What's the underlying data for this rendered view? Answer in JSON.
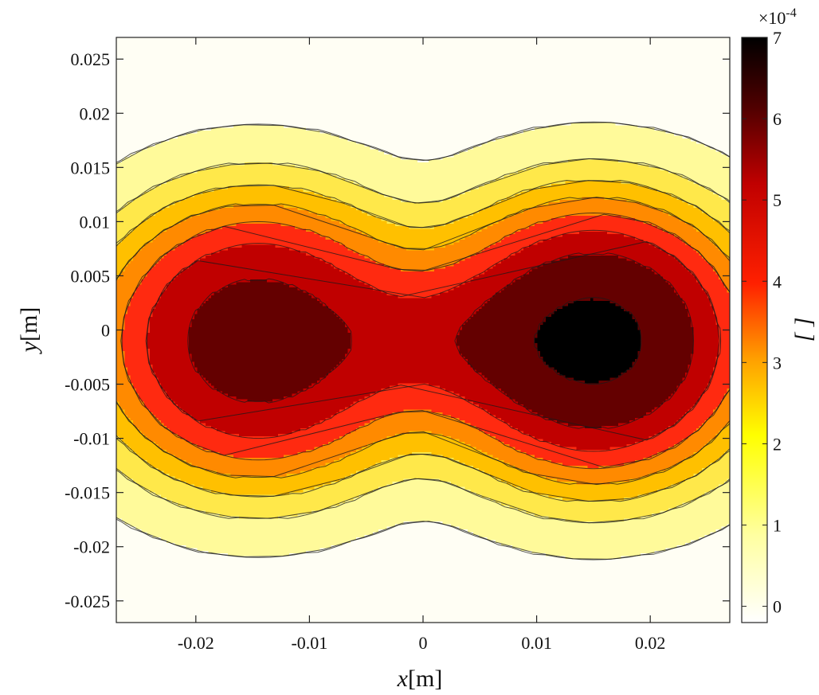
{
  "chart_data": {
    "type": "heatmap",
    "title": "",
    "xlabel_base": "x",
    "xlabel_unit": "[m]",
    "ylabel_base": "y",
    "ylabel_unit": "[m]",
    "colorbar_label": "[ ]",
    "colorbar_exponent_prefix": "×10",
    "colorbar_exponent": "-4",
    "xlim": [
      -0.027,
      0.027
    ],
    "ylim": [
      -0.027,
      0.027
    ],
    "clim": [
      -0.2,
      7
    ],
    "x_ticks": [
      -0.02,
      -0.01,
      0,
      0.01,
      0.02
    ],
    "x_tick_labels": [
      "-0.02",
      "-0.01",
      "0",
      "0.01",
      "0.02"
    ],
    "y_ticks": [
      0.025,
      0.02,
      0.015,
      0.01,
      0.005,
      0,
      -0.005,
      -0.01,
      -0.015,
      -0.02,
      -0.025
    ],
    "y_tick_labels": [
      "0.025",
      "0.02",
      "0.015",
      "0.01",
      "0.005",
      "0",
      "-0.005",
      "-0.01",
      "-0.015",
      "-0.02",
      "-0.025"
    ],
    "colorbar_ticks": [
      0,
      1,
      2,
      3,
      4,
      5,
      6,
      7
    ],
    "colorbar_tick_labels": [
      "0",
      "1",
      "2",
      "3",
      "4",
      "5",
      "6",
      "7"
    ],
    "colormap": "hot (reversed)",
    "contour_levels": [
      0.3,
      1.2,
      2.1,
      3.0,
      3.9,
      4.8,
      5.7,
      6.6
    ],
    "level_colors": [
      "#fffef4",
      "#fffa9a",
      "#ffe84a",
      "#ffc000",
      "#ff8a00",
      "#ff2a10",
      "#c00000",
      "#640000",
      "#000000"
    ],
    "peaks": [
      {
        "x": -0.0145,
        "y": -0.001,
        "value": 6.0
      },
      {
        "x": 0.015,
        "y": -0.001,
        "value": 6.7
      }
    ]
  }
}
